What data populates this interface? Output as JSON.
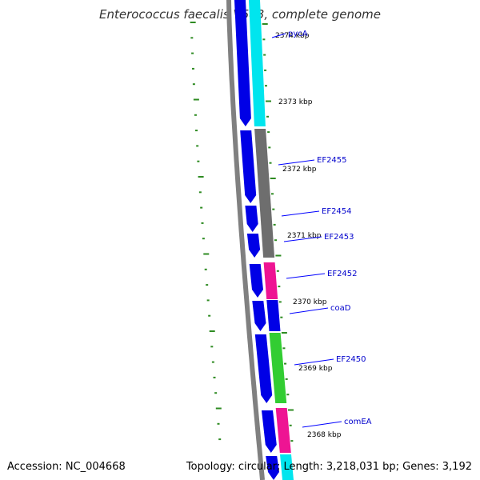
{
  "title": "Enterococcus faecalis V583, complete genome",
  "footer": {
    "accession": "Accession: NC_004668",
    "summary": "Topology: circular; Length: 3,218,031 bp; Genes: 3,192"
  },
  "colors": {
    "backbone": "#808080",
    "cds": "#0000e6",
    "label_line": "#0000ff",
    "label_text": "#0000cc",
    "tick": "#2e8b22",
    "cyan": "#00e5ee",
    "gray": "#6e6e6e",
    "magenta": "#ee1493",
    "green": "#32cd32"
  },
  "kbp_labels": [
    "2374 kbp",
    "2373 kbp",
    "2372 kbp",
    "2371 kbp",
    "2370 kbp",
    "2369 kbp",
    "2368 kbp"
  ],
  "genes": [
    {
      "name": "pycA",
      "cog_color": "cyan"
    },
    {
      "name": "EF2455",
      "cog_color": "gray"
    },
    {
      "name": "EF2454",
      "cog_color": "gray"
    },
    {
      "name": "EF2453",
      "cog_color": "gray"
    },
    {
      "name": "EF2452",
      "cog_color": "magenta"
    },
    {
      "name": "coaD",
      "cog_color": "blue"
    },
    {
      "name": "EF2450",
      "cog_color": "green"
    },
    {
      "name": "comEA",
      "cog_color": "magenta"
    }
  ]
}
